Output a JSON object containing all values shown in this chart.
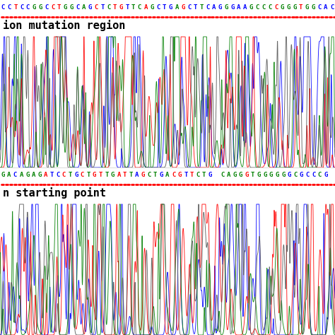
{
  "top_seq": "CCTCCGGCCTGGCAGCTCTGTTCAGCTGAGCTTCAGGGAAGCCCCGGGTGGCAC",
  "top_seq_colors": [
    "blue",
    "blue",
    "red",
    "blue",
    "blue",
    "green",
    "green",
    "blue",
    "red",
    "red",
    "green",
    "green",
    "blue",
    "green",
    "blue",
    "red",
    "blue",
    "green",
    "red",
    "red",
    "blue",
    "green",
    "green",
    "red",
    "green",
    "blue",
    "blue",
    "blue",
    "green",
    "red",
    "blue",
    "blue",
    "green",
    "blue",
    "blue",
    "blue",
    "green",
    "blue",
    "blue",
    "blue",
    "green",
    "green",
    "green",
    "green",
    "red",
    "green",
    "green",
    "green",
    "red",
    "green",
    "green",
    "blue",
    "blue",
    "blue"
  ],
  "bottom_seq": "GACAGAGATCCTGCTGTTGATTAGCTGACGTTCTG CAGGGTGGGGGGCGCCCGC",
  "bottom_seq_colors": [
    "green",
    "green",
    "blue",
    "green",
    "green",
    "green",
    "green",
    "red",
    "blue",
    "blue",
    "red",
    "green",
    "blue",
    "red",
    "green",
    "red",
    "red",
    "green",
    "green",
    "red",
    "red",
    "green",
    "blue",
    "red",
    "green",
    "green",
    "blue",
    "green",
    "red",
    "red",
    "blue",
    "red",
    "green",
    "green",
    "blue",
    "blue",
    "green",
    "green",
    "green",
    "green",
    "red",
    "green",
    "green",
    "green",
    "green",
    "green",
    "green",
    "blue",
    "green",
    "blue",
    "blue",
    "blue",
    "green",
    "blue"
  ],
  "label1": "ion mutation region",
  "label2": "n starting point",
  "bg_color": "#ffffff",
  "seq_font_size": 6.5,
  "label_font_size": 11
}
